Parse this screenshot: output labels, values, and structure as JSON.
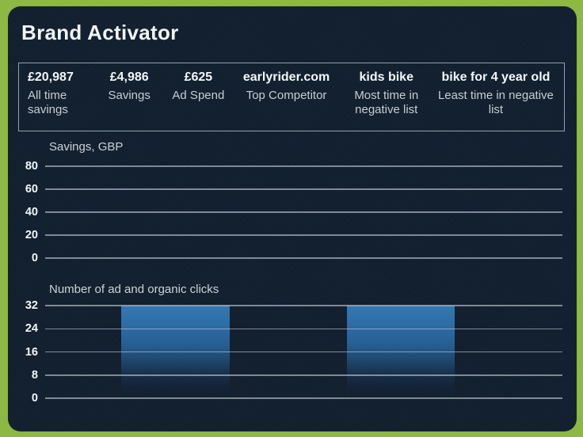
{
  "page": {
    "title": "Brand Activator"
  },
  "colors": {
    "frame_green": "#8cb843",
    "card_bg": "#111e2e",
    "text_primary": "#f3f6f9",
    "text_secondary": "#c7cdd5",
    "gridline": "#c1cbd5",
    "bar_blue_top": "#3379b1"
  },
  "stats": [
    {
      "value": "£20,987",
      "label": "All time savings"
    },
    {
      "value": "£4,986",
      "label": "Savings"
    },
    {
      "value": "£625",
      "label": "Ad Spend"
    },
    {
      "value": "earlyrider.com",
      "label": "Top Competitor"
    },
    {
      "value": "kids bike",
      "label": "Most time in negative list"
    },
    {
      "value": "bike for 4 year old",
      "label": "Least time in negative list"
    }
  ],
  "chart_data": [
    {
      "type": "bar",
      "title": "Savings, GBP",
      "xlabel": "",
      "ylabel": "Savings, GBP",
      "ylim": [
        0,
        80
      ],
      "yticks": [
        80,
        60,
        40,
        20,
        0
      ],
      "grid": "horizontal",
      "legend": "none",
      "bars": [],
      "note": "no data plotted"
    },
    {
      "type": "bar",
      "title": "Number of ad and organic clicks",
      "xlabel": "",
      "ylabel": "Number of ad and organic clicks",
      "ylim": [
        0,
        32
      ],
      "yticks": [
        32,
        24,
        16,
        8,
        0
      ],
      "grid": "horizontal",
      "legend": "none",
      "bars": [
        {
          "value": 32,
          "start_frac": 0.147,
          "end_frac": 0.357,
          "fade_to_bottom": true
        },
        {
          "value": 32,
          "start_frac": 0.584,
          "end_frac": 0.792,
          "fade_to_bottom": true
        }
      ]
    }
  ]
}
